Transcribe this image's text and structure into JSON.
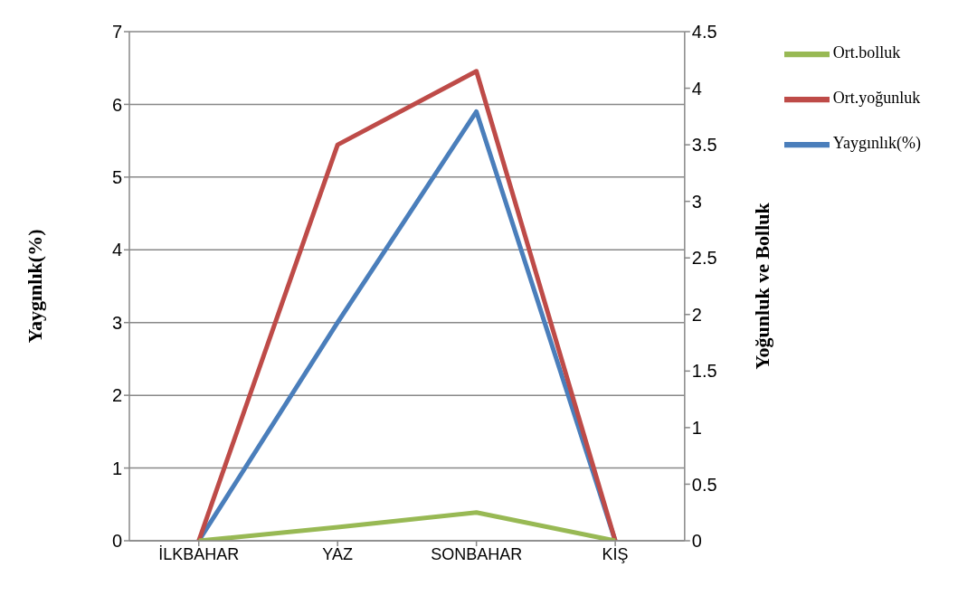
{
  "chart_data": {
    "type": "line",
    "categories": [
      "İLKBAHAR",
      "YAZ",
      "SONBAHAR",
      "KIŞ"
    ],
    "ylabel": "Yaygınlık(%)",
    "y2label": "Yoğunluk ve  Bolluk",
    "ylim": [
      0,
      7
    ],
    "yticks": [
      0,
      1,
      2,
      3,
      4,
      5,
      6,
      7
    ],
    "y2lim": [
      0,
      4.5
    ],
    "y2ticks": [
      0,
      0.5,
      1,
      1.5,
      2,
      2.5,
      3,
      3.5,
      4,
      4.5
    ],
    "grid": "y",
    "legend": "top right",
    "marker": "none",
    "series": [
      {
        "name": "Yaygınlık(%)",
        "color": "#4a7ebb",
        "values": [
          0,
          3.0,
          5.9,
          0
        ]
      },
      {
        "name": "Ort.yoğunluk",
        "color": "#be4b48",
        "values": [
          0,
          3.5,
          4.15,
          0
        ],
        "axis": "y2"
      },
      {
        "name": "Ort.bolluk",
        "color": "#98b954",
        "values": [
          0,
          0.12,
          0.25,
          0
        ],
        "axis": "y2"
      }
    ]
  }
}
